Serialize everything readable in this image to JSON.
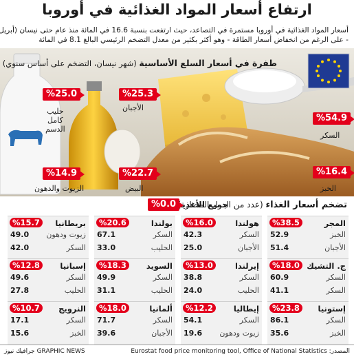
{
  "title": "ارتفاع أسعار المواد الغذائية في أوروبا",
  "subtitle_lines": [
    "أسعار المواد الغذائية في أوروبا مستمرة في التصاعد، حيث ارتفعت بنسبة 16.6 في المائة منذ عام حتى نيسان (أبريل)",
    "- على الرغم من انخفاض أسعار الطاقة - وهو أكثر بكثير من معدل التضخم الرئيسي البالغ 8.1 في المائة"
  ],
  "hero": {
    "title_bold": "طفرة في أسعار السلع الأساسية",
    "title_note": " (شهر نيسان، التضخم على أساس سنوي)",
    "items": [
      {
        "label": "حليب\nكامل\nالدسم",
        "value": "%25.0"
      },
      {
        "label": "الأجبان",
        "value": "%25.3"
      },
      {
        "label": "السكر",
        "value": "%54.9"
      },
      {
        "label": "الزيوت والدهون",
        "value": "%14.9"
      },
      {
        "label": "البيض",
        "value": "%22.7"
      },
      {
        "label": "الخبز",
        "value": "%16.4"
      }
    ]
  },
  "grid": {
    "title_bold": "تضخم أسعار الغذاء",
    "title_note": " (عدد من الدول المختارة)",
    "all_food_label": "جميع الأغذية",
    "all_food_value": "%0.0"
  },
  "chart_data": {
    "type": "table",
    "title": "ارتفاع أسعار المواد الغذائية في أوروبا",
    "hero_series": [
      {
        "category": "حليب كامل الدسم",
        "value": 25.0
      },
      {
        "category": "الأجبان",
        "value": 25.3
      },
      {
        "category": "السكر",
        "value": 54.9
      },
      {
        "category": "الزيوت والدهون",
        "value": 14.9
      },
      {
        "category": "البيض",
        "value": 22.7
      },
      {
        "category": "الخبز",
        "value": 16.4
      }
    ],
    "countries": [
      {
        "name": "المجر",
        "total": "%38.5",
        "rows": [
          [
            "الخبز",
            "52.9"
          ],
          [
            "الأجبان",
            "51.4"
          ]
        ]
      },
      {
        "name": "هولندا",
        "total": "%16.0",
        "rows": [
          [
            "السكر",
            "42.3"
          ],
          [
            "الأجبان",
            "25.0"
          ]
        ]
      },
      {
        "name": "بولندا",
        "total": "%20.6",
        "rows": [
          [
            "السكر",
            "67.1"
          ],
          [
            "الحليب",
            "33.0"
          ]
        ]
      },
      {
        "name": "بريطانيا",
        "total": "%15.7",
        "rows": [
          [
            "زيوت ودهون",
            "49.0"
          ],
          [
            "السكر",
            "42.0"
          ]
        ]
      },
      {
        "name": "ج. التشيك",
        "total": "%18.0",
        "rows": [
          [
            "السكر",
            "60.9"
          ],
          [
            "السكر",
            "41.1"
          ]
        ]
      },
      {
        "name": "إيرلندا",
        "total": "%13.0",
        "rows": [
          [
            "السكر",
            "38.8"
          ],
          [
            "الحليب",
            "24.0"
          ]
        ]
      },
      {
        "name": "السويد",
        "total": "%18.3",
        "rows": [
          [
            "السكر",
            "49.9"
          ],
          [
            "الحليب",
            "31.1"
          ]
        ]
      },
      {
        "name": "إسبانيا",
        "total": "%12.8",
        "rows": [
          [
            "السكر",
            "49.6"
          ],
          [
            "الحليب",
            "27.8"
          ]
        ]
      },
      {
        "name": "إستونيا",
        "total": "%23.8",
        "rows": [
          [
            "السكر",
            "86.1"
          ],
          [
            "الخبز",
            "35.6"
          ]
        ]
      },
      {
        "name": "إيطاليا",
        "total": "%12.2",
        "rows": [
          [
            "السكر",
            "54.1"
          ],
          [
            "زيوت ودهون",
            "19.6"
          ]
        ]
      },
      {
        "name": "ألمانيا",
        "total": "%18.0",
        "rows": [
          [
            "السكر",
            "71.7"
          ],
          [
            "الأجبان",
            "39.6"
          ]
        ]
      },
      {
        "name": "النرويج",
        "total": "%10.7",
        "rows": [
          [
            "السكر",
            "17.1"
          ],
          [
            "الخبز",
            "15.6"
          ]
        ]
      }
    ]
  },
  "footer": {
    "source": "المصدر: Eurostat food price monitoring tool, Office of National Statistics",
    "brand": "جرافيك نيوز GRAPHIC NEWS"
  },
  "colors": {
    "accent": "#e3001b",
    "eu_blue": "#1f3a93",
    "eu_star": "#ffd400"
  }
}
